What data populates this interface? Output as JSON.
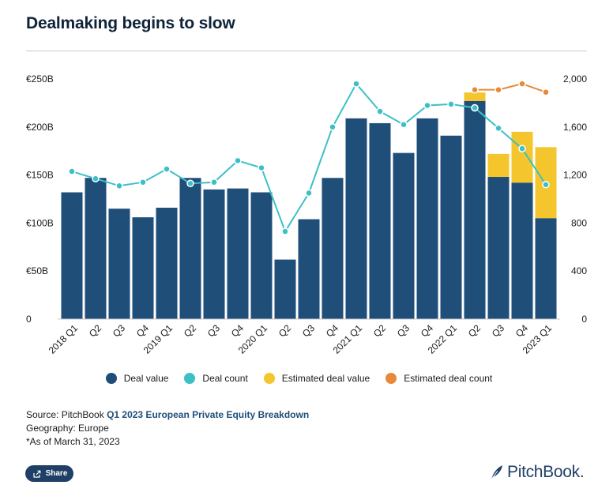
{
  "title": "Dealmaking begins to slow",
  "chart_data": {
    "type": "bar",
    "categories": [
      "2018 Q1",
      "Q2",
      "Q3",
      "Q4",
      "2019 Q1",
      "Q2",
      "Q3",
      "Q4",
      "2020 Q1",
      "Q2",
      "Q3",
      "Q4",
      "2021 Q1",
      "Q2",
      "Q3",
      "Q4",
      "2022 Q1",
      "Q2",
      "Q3",
      "Q4",
      "2023 Q1"
    ],
    "left_axis": {
      "ticks": [
        "0",
        "€50B",
        "€100B",
        "€150B",
        "€200B",
        "€250B"
      ],
      "ylim": [
        0,
        250
      ]
    },
    "right_axis": {
      "ticks": [
        "0",
        "400",
        "800",
        "1,200",
        "1,600",
        "2,000"
      ],
      "ylim": [
        0,
        2000
      ]
    },
    "series": [
      {
        "name": "Deal value",
        "kind": "bar",
        "axis": "left",
        "color": "#1f4e79",
        "values": [
          132,
          147,
          115,
          106,
          116,
          147,
          135,
          136,
          132,
          62,
          104,
          147,
          209,
          204,
          173,
          209,
          191,
          227,
          148,
          142,
          105
        ]
      },
      {
        "name": "Estimated deal value",
        "kind": "bar-stack",
        "axis": "left",
        "color": "#f4c52c",
        "values": [
          0,
          0,
          0,
          0,
          0,
          0,
          0,
          0,
          0,
          0,
          0,
          0,
          0,
          0,
          0,
          0,
          0,
          9,
          24,
          53,
          74
        ]
      },
      {
        "name": "Deal count",
        "kind": "line",
        "axis": "right",
        "color": "#3cc0c7",
        "values": [
          1230,
          1170,
          1110,
          1140,
          1250,
          1130,
          1140,
          1320,
          1260,
          730,
          1050,
          1600,
          1960,
          1730,
          1620,
          1780,
          1790,
          1760,
          1590,
          1420,
          1120
        ]
      },
      {
        "name": "Estimated deal count",
        "kind": "line",
        "axis": "right",
        "color": "#e8893a",
        "values": [
          null,
          null,
          null,
          null,
          null,
          null,
          null,
          null,
          null,
          null,
          null,
          null,
          null,
          null,
          null,
          null,
          null,
          1910,
          1910,
          1960,
          1890
        ]
      }
    ],
    "grid": true,
    "legend_position": "bottom"
  },
  "legend": [
    {
      "label": "Deal value",
      "color": "#1f4e79"
    },
    {
      "label": "Deal count",
      "color": "#3cc0c7"
    },
    {
      "label": "Estimated deal value",
      "color": "#f4c52c"
    },
    {
      "label": "Estimated deal count",
      "color": "#e8893a"
    }
  ],
  "footer": {
    "source_prefix": "Source: PitchBook ",
    "source_link": "Q1 2023 European Private Equity Breakdown",
    "geography": "Geography: Europe",
    "asof": "*As of March 31, 2023"
  },
  "share_label": "Share",
  "brand": "PitchBook."
}
